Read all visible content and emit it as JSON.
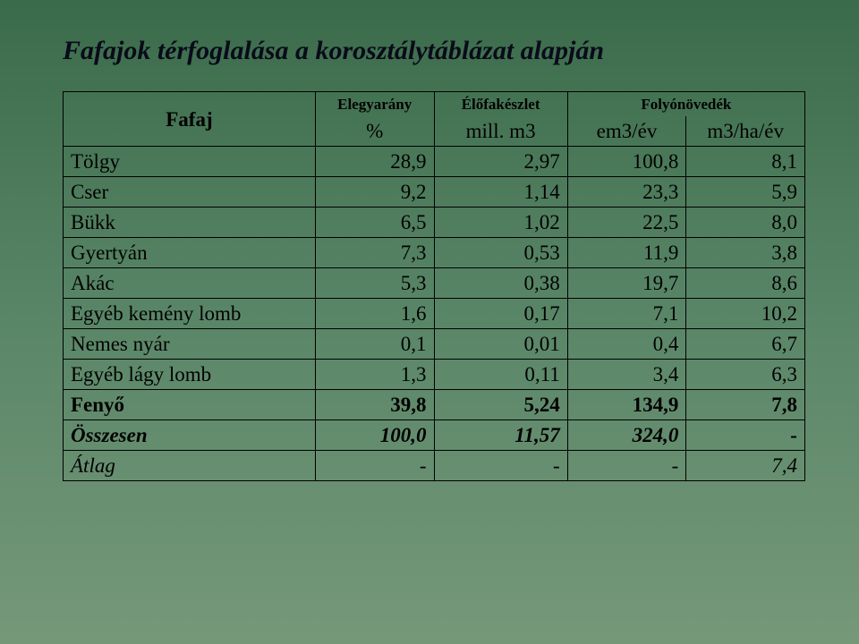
{
  "title": "Fafajok térfoglalása a korosztálytáblázat alapján",
  "table": {
    "header1": {
      "fafaj": "Fafaj",
      "elegyarany": "Elegyarány",
      "elofakeszlet": "Élőfakészlet",
      "folyo": "Folyónövedék"
    },
    "header2": {
      "percent": "%",
      "mill": "mill. m3",
      "em3ev": "em3/év",
      "m3ha": "m3/ha/év"
    },
    "rows": [
      {
        "name": "Tölgy",
        "v1": "28,9",
        "v2": "2,97",
        "v3": "100,8",
        "v4": "8,1"
      },
      {
        "name": "Cser",
        "v1": "9,2",
        "v2": "1,14",
        "v3": "23,3",
        "v4": "5,9"
      },
      {
        "name": "Bükk",
        "v1": "6,5",
        "v2": "1,02",
        "v3": "22,5",
        "v4": "8,0"
      },
      {
        "name": "Gyertyán",
        "v1": "7,3",
        "v2": "0,53",
        "v3": "11,9",
        "v4": "3,8"
      },
      {
        "name": "Akác",
        "v1": "5,3",
        "v2": "0,38",
        "v3": "19,7",
        "v4": "8,6"
      },
      {
        "name": "Egyéb kemény lomb",
        "v1": "1,6",
        "v2": "0,17",
        "v3": "7,1",
        "v4": "10,2"
      },
      {
        "name": "Nemes nyár",
        "v1": "0,1",
        "v2": "0,01",
        "v3": "0,4",
        "v4": "6,7"
      },
      {
        "name": "Egyéb lágy lomb",
        "v1": "1,3",
        "v2": "0,11",
        "v3": "3,4",
        "v4": "6,3"
      }
    ],
    "fenyo": {
      "name": "Fenyő",
      "v1": "39,8",
      "v2": "5,24",
      "v3": "134,9",
      "v4": "7,8"
    },
    "osszesen": {
      "name": "Összesen",
      "v1": "100,0",
      "v2": "11,57",
      "v3": "324,0",
      "v4": "-"
    },
    "atlag": {
      "name": "Átlag",
      "v1": "-",
      "v2": "-",
      "v3": "-",
      "v4": "7,4"
    }
  }
}
